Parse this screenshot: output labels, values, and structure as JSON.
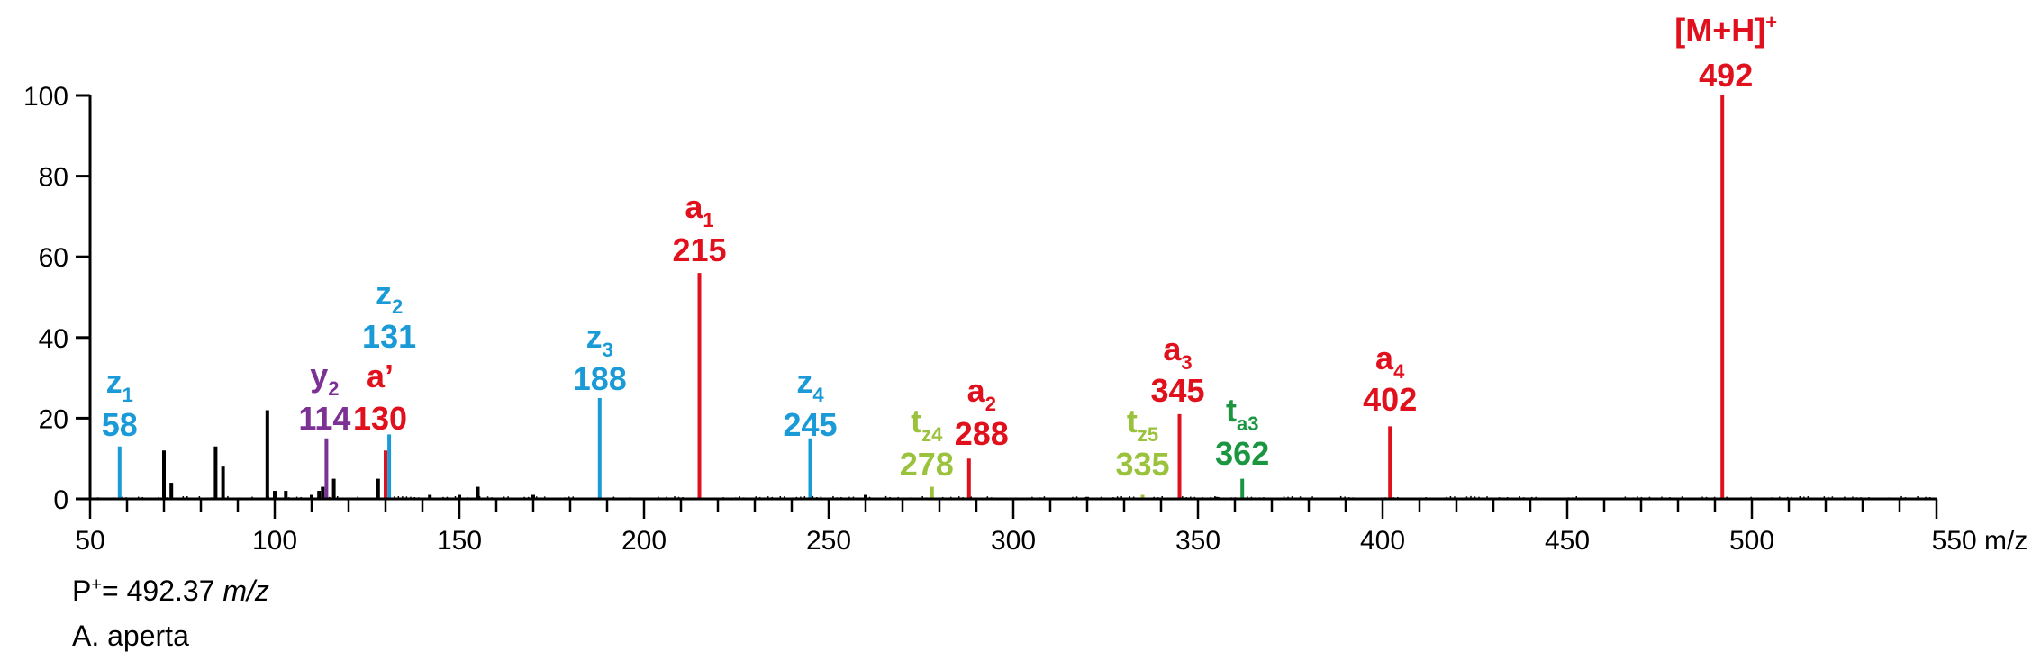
{
  "chart_data": {
    "type": "bar",
    "xlabel": "m/z",
    "ylabel": "",
    "xlim": [
      50,
      550
    ],
    "ylim": [
      0,
      100
    ],
    "x_ticks": [
      50,
      100,
      150,
      200,
      250,
      300,
      350,
      400,
      450,
      500,
      550
    ],
    "y_ticks": [
      0,
      20,
      40,
      60,
      80,
      100
    ],
    "colors": {
      "z": "#1a9ad6",
      "y": "#7b3294",
      "a": "#e0101c",
      "tz": "#9bc23c",
      "ta": "#1a9640",
      "noise": "#000000"
    },
    "annotated_peaks": [
      {
        "mz": 58,
        "intensity": 13,
        "ion": "z",
        "sub": "1",
        "label": "58",
        "color_key": "z"
      },
      {
        "mz": 114,
        "intensity": 15,
        "ion": "y",
        "sub": "2",
        "label": "114",
        "color_key": "y"
      },
      {
        "mz": 130,
        "intensity": 12,
        "ion": "a’",
        "sub": "",
        "label": "130",
        "color_key": "a"
      },
      {
        "mz": 131,
        "intensity": 16,
        "ion": "z",
        "sub": "2",
        "label": "131",
        "color_key": "z"
      },
      {
        "mz": 188,
        "intensity": 25,
        "ion": "z",
        "sub": "3",
        "label": "188",
        "color_key": "z"
      },
      {
        "mz": 215,
        "intensity": 56,
        "ion": "a",
        "sub": "1",
        "label": "215",
        "color_key": "a"
      },
      {
        "mz": 245,
        "intensity": 15,
        "ion": "z",
        "sub": "4",
        "label": "245",
        "color_key": "z"
      },
      {
        "mz": 278,
        "intensity": 3,
        "ion": "t",
        "sub": "z4",
        "label": "278",
        "color_key": "tz"
      },
      {
        "mz": 288,
        "intensity": 10,
        "ion": "a",
        "sub": "2",
        "label": "288",
        "color_key": "a"
      },
      {
        "mz": 335,
        "intensity": 1,
        "ion": "t",
        "sub": "z5",
        "label": "335",
        "color_key": "tz"
      },
      {
        "mz": 345,
        "intensity": 21,
        "ion": "a",
        "sub": "3",
        "label": "345",
        "color_key": "a"
      },
      {
        "mz": 362,
        "intensity": 5,
        "ion": "t",
        "sub": "a3",
        "label": "362",
        "color_key": "ta"
      },
      {
        "mz": 402,
        "intensity": 18,
        "ion": "a",
        "sub": "4",
        "label": "402",
        "color_key": "a"
      },
      {
        "mz": 492,
        "intensity": 100,
        "ion": "[M+H]",
        "sup": "+",
        "label": "492",
        "color_key": "a"
      }
    ],
    "unlabeled_peaks": [
      {
        "mz": 70,
        "intensity": 12
      },
      {
        "mz": 72,
        "intensity": 4
      },
      {
        "mz": 84,
        "intensity": 13
      },
      {
        "mz": 86,
        "intensity": 8
      },
      {
        "mz": 98,
        "intensity": 22
      },
      {
        "mz": 100,
        "intensity": 2
      },
      {
        "mz": 103,
        "intensity": 2
      },
      {
        "mz": 110,
        "intensity": 1
      },
      {
        "mz": 112,
        "intensity": 2
      },
      {
        "mz": 113,
        "intensity": 3
      },
      {
        "mz": 116,
        "intensity": 5
      },
      {
        "mz": 128,
        "intensity": 5
      },
      {
        "mz": 142,
        "intensity": 1
      },
      {
        "mz": 150,
        "intensity": 1
      },
      {
        "mz": 155,
        "intensity": 3
      },
      {
        "mz": 170,
        "intensity": 1
      },
      {
        "mz": 260,
        "intensity": 1
      },
      {
        "mz": 320,
        "intensity": 0.5
      },
      {
        "mz": 355,
        "intensity": 0.5
      }
    ]
  },
  "info": {
    "precursor_prefix": "P",
    "precursor_sup": "+",
    "precursor_value": "= 492.37 ",
    "precursor_unit": "m/z",
    "species": "A. aperta"
  }
}
